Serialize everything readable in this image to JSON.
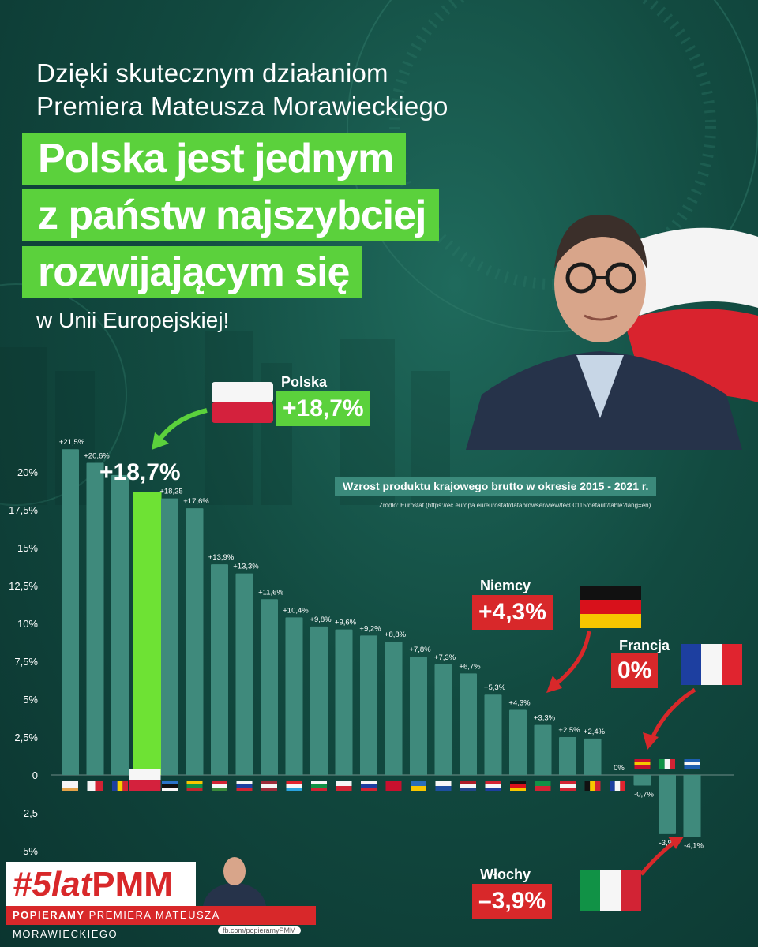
{
  "header": {
    "intro_line1": "Dzięki skutecznym działaniom",
    "intro_line2": "Premiera Mateusza Morawieckiego",
    "headline_line1": "Polska jest jednym",
    "headline_line2": "z państw najszybciej",
    "headline_line3": "rozwijającym się",
    "outro": "w Unii Europejskiej!"
  },
  "callouts": {
    "polska": {
      "label": "Polska",
      "value": "+18,7%"
    },
    "polska_big": "+18,7%",
    "niemcy": {
      "label": "Niemcy",
      "value": "+4,3%"
    },
    "francja": {
      "label": "Francja",
      "value": "0%"
    },
    "wlochy": {
      "label": "Włochy",
      "value": "–3,9%"
    }
  },
  "chart_data": {
    "type": "bar",
    "title": "Wzrost produktu krajowego brutto w okresie 2015 - 2021  r.",
    "source": "Źródło: Eurostat (https://ec.europa.eu/eurostat/databrowser/view/tec00115/default/table?lang=en)",
    "ylim": [
      -5,
      22.5
    ],
    "y_ticks": [
      "20%",
      "17,5%",
      "15%",
      "12,5%",
      "10%",
      "7,5%",
      "5%",
      "2,5%",
      "0",
      "-2,5",
      "-5%"
    ],
    "y_tick_values": [
      20,
      17.5,
      15,
      12.5,
      10,
      7.5,
      5,
      2.5,
      0,
      -2.5,
      -5
    ],
    "grid": false,
    "bars": [
      {
        "flag": "cyprus",
        "value": 21.5,
        "label": "+21,5%"
      },
      {
        "flag": "malta",
        "value": 20.6,
        "label": "+20,6%"
      },
      {
        "flag": "romania",
        "value": 19.8,
        "label": ""
      },
      {
        "flag": "poland",
        "value": 18.7,
        "label": "",
        "highlight": true
      },
      {
        "flag": "estonia",
        "value": 18.25,
        "label": "+18,25"
      },
      {
        "flag": "lithuania",
        "value": 17.6,
        "label": "+17,6%"
      },
      {
        "flag": "hungary",
        "value": 13.9,
        "label": "+13,9%"
      },
      {
        "flag": "slovenia",
        "value": 13.3,
        "label": "+13,3%"
      },
      {
        "flag": "latvia",
        "value": 11.6,
        "label": "+11,6%"
      },
      {
        "flag": "luxembourg",
        "value": 10.4,
        "label": "+10,4%"
      },
      {
        "flag": "bulgaria",
        "value": 9.8,
        "label": "+9,8%"
      },
      {
        "flag": "czechia",
        "value": 9.6,
        "label": "+9,6%"
      },
      {
        "flag": "slovakia",
        "value": 9.2,
        "label": "+9,2%"
      },
      {
        "flag": "denmark",
        "value": 8.8,
        "label": "+8,8%"
      },
      {
        "flag": "sweden",
        "value": 7.8,
        "label": "+7,8%"
      },
      {
        "flag": "finland",
        "value": 7.3,
        "label": "+7,3%"
      },
      {
        "flag": "netherlands",
        "value": 6.7,
        "label": "+6,7%"
      },
      {
        "flag": "croatia",
        "value": 5.3,
        "label": "+5,3%"
      },
      {
        "flag": "germany",
        "value": 4.3,
        "label": "+4,3%"
      },
      {
        "flag": "portugal",
        "value": 3.3,
        "label": "+3,3%"
      },
      {
        "flag": "austria",
        "value": 2.5,
        "label": "+2,5%"
      },
      {
        "flag": "belgium",
        "value": 2.4,
        "label": "+2,4%"
      },
      {
        "flag": "france",
        "value": 0,
        "label": "0%"
      },
      {
        "flag": "spain",
        "value": -0.7,
        "label": "-0,7%"
      },
      {
        "flag": "italy",
        "value": -3.9,
        "label": "-3,9%"
      },
      {
        "flag": "greece",
        "value": -4.1,
        "label": "-4,1%"
      }
    ]
  },
  "footer": {
    "tag": "#5latPMM",
    "tag_italic": "#5lat",
    "tag_bold": "PMM",
    "slogan_bold": "POPIERAMY",
    "slogan_rest": "PREMIERA MATEUSZA MORAWIECKIEGO",
    "fb": "fb.com/popieramyPMM"
  },
  "colors": {
    "background": "#124a40",
    "bar": "#3f8a7c",
    "highlight_bar": "#6ee234",
    "accent_green": "#5bd13c",
    "accent_red": "#d8282a"
  }
}
